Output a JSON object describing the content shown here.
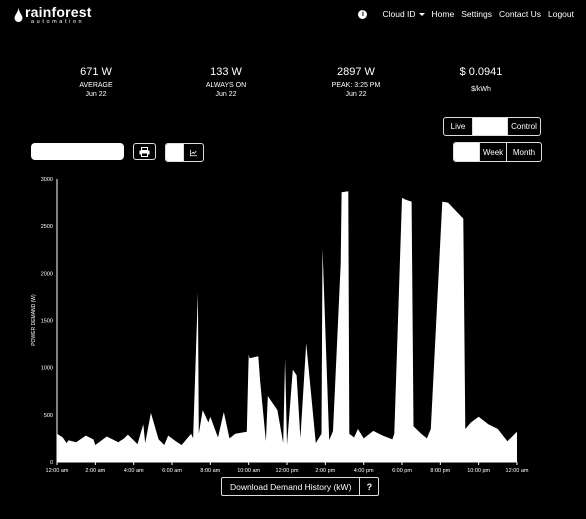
{
  "header": {
    "logo_main": "rainforest",
    "logo_sub": "automation",
    "nav": {
      "cloud_id": "Cloud ID",
      "home": "Home",
      "settings": "Settings",
      "contact": "Contact Us",
      "logout": "Logout"
    }
  },
  "stats": [
    {
      "value": "671 W",
      "label": "AVERAGE",
      "sub": "Jun 22"
    },
    {
      "value": "133 W",
      "label": "ALWAYS ON",
      "sub": "Jun 22"
    },
    {
      "value": "2897 W",
      "label": "PEAK: 3:25 PM",
      "sub": "Jun 22"
    },
    {
      "value": "$ 0.0941",
      "label": "$/kWh",
      "sub": ""
    }
  ],
  "controls": {
    "live": "Live",
    "control": "Control",
    "week": "Week",
    "month": "Month",
    "download": "Download Demand History (kW)",
    "help": "?"
  },
  "chart_data": {
    "type": "area",
    "ylabel": "POWER DEMAND (W)",
    "xlabel": "",
    "ylim": [
      0,
      3000
    ],
    "yticks": [
      0,
      500,
      1000,
      1500,
      2000,
      2500,
      3000
    ],
    "xticks": [
      "12:00 am",
      "2:00 am",
      "4:00 am",
      "6:00 am",
      "8:00 am",
      "10:00 am",
      "12:00 pm",
      "2:00 pm",
      "4:00 pm",
      "6:00 pm",
      "8:00 pm",
      "10:00 pm",
      "12:00 am"
    ],
    "x_hours": [
      0,
      0.3,
      0.5,
      0.6,
      1.0,
      1.5,
      1.9,
      2.0,
      2.6,
      3.2,
      3.5,
      3.7,
      4.2,
      4.5,
      4.6,
      4.9,
      5.3,
      5.6,
      5.8,
      6.2,
      6.5,
      7.0,
      7.1,
      7.35,
      7.4,
      7.6,
      7.9,
      8.0,
      8.4,
      8.7,
      9.0,
      9.3,
      9.9,
      10.0,
      10.05,
      10.5,
      10.6,
      10.9,
      11.0,
      11.5,
      11.8,
      11.9,
      12.0,
      12.3,
      12.5,
      12.7,
      13.0,
      13.5,
      13.8,
      13.85,
      14.2,
      14.4,
      14.8,
      14.85,
      15.2,
      15.25,
      15.5,
      15.7,
      16.0,
      16.5,
      17.0,
      17.5,
      17.6,
      18.0,
      18.2,
      18.5,
      18.6,
      19.0,
      19.3,
      19.5,
      20.1,
      20.4,
      21.2,
      21.3,
      21.6,
      22.0,
      22.5,
      23.0,
      23.5,
      24.0
    ],
    "values": [
      300,
      260,
      200,
      230,
      210,
      280,
      240,
      180,
      270,
      210,
      250,
      290,
      190,
      400,
      200,
      520,
      240,
      180,
      280,
      220,
      180,
      300,
      250,
      1800,
      300,
      550,
      420,
      480,
      260,
      530,
      250,
      300,
      320,
      1140,
      1100,
      1120,
      850,
      220,
      700,
      550,
      200,
      1100,
      180,
      980,
      920,
      250,
      1260,
      200,
      300,
      2270,
      230,
      330,
      2100,
      2860,
      2870,
      300,
      260,
      350,
      250,
      330,
      280,
      240,
      300,
      2800,
      2780,
      2760,
      380,
      300,
      250,
      350,
      2760,
      2750,
      2580,
      350,
      420,
      480,
      400,
      350,
      220,
      320
    ]
  }
}
